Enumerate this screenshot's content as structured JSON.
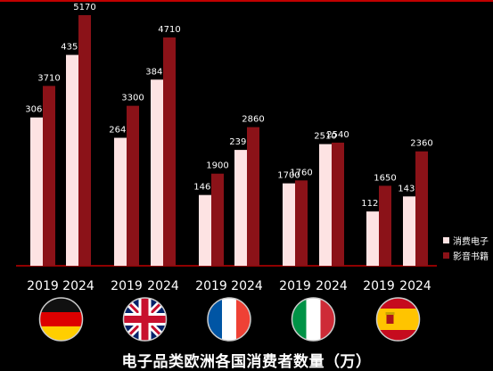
{
  "chart_data": {
    "type": "bar",
    "title": "电子品类欧洲各国消费者数量（万）",
    "categories": [
      "2019",
      "2024",
      "2019",
      "2024",
      "2019",
      "2024",
      "2019",
      "2024",
      "2019",
      "2024"
    ],
    "groups": [
      {
        "flag": "germany-flag",
        "years": [
          "2019",
          "2024"
        ]
      },
      {
        "flag": "uk-flag",
        "years": [
          "2019",
          "2024"
        ]
      },
      {
        "flag": "france-flag",
        "years": [
          "2019",
          "2024"
        ]
      },
      {
        "flag": "italy-flag",
        "years": [
          "2019",
          "2024"
        ]
      },
      {
        "flag": "spain-flag",
        "years": [
          "2019",
          "2024"
        ]
      }
    ],
    "series": [
      {
        "name": "消费电子",
        "color": "#fde3e3",
        "values": [
          3060,
          4350,
          2640,
          3840,
          1460,
          2390,
          1700,
          2510,
          1120,
          1430
        ]
      },
      {
        "name": "影音书籍",
        "color": "#8b1218",
        "values": [
          3710,
          5170,
          3300,
          4710,
          1900,
          2860,
          1760,
          2540,
          1650,
          2360
        ]
      }
    ],
    "ylim": [
      0,
      5170
    ],
    "grid": false,
    "legend_position": "right"
  },
  "colors": {
    "background": "#000000",
    "axis": "#c00000",
    "text": "#ffffff"
  }
}
